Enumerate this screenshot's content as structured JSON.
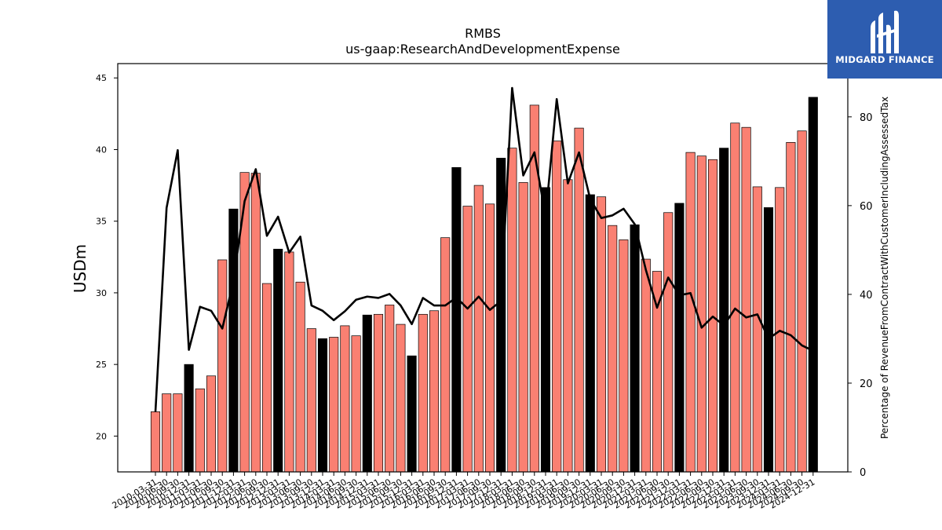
{
  "chart_data": {
    "type": "bar",
    "title": "RMBS",
    "subtitle": "us-gaap:ResearchAndDevelopmentExpense",
    "ylabel": "USDm",
    "y2label": "Percentage of RevenueFromContractWithCustomerIncludingAssessedTax",
    "ylim": [
      17.5,
      46
    ],
    "y2lim": [
      0,
      92
    ],
    "yticks": [
      20,
      25,
      30,
      35,
      40,
      45
    ],
    "y2ticks": [
      0,
      20,
      40,
      60,
      80
    ],
    "colors": {
      "bar": "#fa8072",
      "bar_q4": "#000000",
      "line": "#000000"
    },
    "categories": [
      "2010-03-31",
      "2010-06-30",
      "2010-09-30",
      "2010-12-31",
      "2011-03-31",
      "2011-06-30",
      "2011-09-30",
      "2011-12-31",
      "2012-03-31",
      "2012-06-30",
      "2012-09-30",
      "2012-12-31",
      "2013-03-31",
      "2013-06-30",
      "2013-09-30",
      "2013-12-31",
      "2014-03-31",
      "2014-06-30",
      "2014-09-30",
      "2014-12-31",
      "2015-03-31",
      "2015-06-30",
      "2015-09-30",
      "2015-12-31",
      "2016-03-31",
      "2016-06-30",
      "2016-09-30",
      "2016-12-31",
      "2017-03-31",
      "2017-06-30",
      "2017-09-30",
      "2017-12-31",
      "2018-03-31",
      "2018-06-30",
      "2018-09-30",
      "2018-12-31",
      "2019-03-31",
      "2019-06-30",
      "2019-09-30",
      "2019-12-31",
      "2020-03-31",
      "2020-06-30",
      "2020-09-30",
      "2020-12-31",
      "2021-03-31",
      "2021-06-30",
      "2021-09-30",
      "2021-12-31",
      "2022-03-31",
      "2022-06-30",
      "2022-09-30",
      "2022-12-31",
      "2023-03-31",
      "2023-06-30",
      "2023-09-30",
      "2023-12-31",
      "2024-03-31",
      "2024-06-30",
      "2024-09-30",
      "2024-12-31"
    ],
    "series": [
      {
        "type": "bar",
        "axis": "left",
        "values": [
          21.7,
          22.95,
          22.95,
          25.0,
          23.3,
          24.2,
          32.3,
          35.85,
          38.4,
          38.35,
          30.65,
          33.05,
          32.85,
          30.75,
          27.5,
          26.8,
          26.9,
          27.7,
          27.0,
          28.45,
          28.5,
          29.15,
          27.8,
          25.6,
          28.5,
          28.75,
          33.85,
          38.75,
          36.05,
          37.5,
          36.2,
          39.4,
          40.1,
          37.7,
          43.1,
          37.35,
          40.6,
          37.9,
          41.5,
          36.85,
          36.7,
          34.7,
          33.7,
          34.75,
          32.35,
          31.5,
          35.6,
          36.25,
          39.8,
          39.55,
          39.3,
          40.1,
          41.85,
          41.55,
          37.4,
          35.95,
          37.35,
          40.5,
          41.3,
          43.65
        ]
      },
      {
        "type": "line",
        "axis": "right",
        "values": [
          13.5,
          59.5,
          72.5,
          27.5,
          37.2,
          36.3,
          32.3,
          43.0,
          61.0,
          68.2,
          53.2,
          57.5,
          49.4,
          53.0,
          37.5,
          36.3,
          34.2,
          36.2,
          38.8,
          39.5,
          39.2,
          40.1,
          37.5,
          33.3,
          39.2,
          37.5,
          37.5,
          39.3,
          36.8,
          39.5,
          36.5,
          38.5,
          86.5,
          66.8,
          72.0,
          57.5,
          84.0,
          65.0,
          72.0,
          61.5,
          57.2,
          57.8,
          59.3,
          55.8,
          45.5,
          37.0,
          43.8,
          39.8,
          40.3,
          32.5,
          35.0,
          33.0,
          36.8,
          34.8,
          35.5,
          30.0,
          31.8,
          30.8,
          28.5,
          27.3
        ]
      }
    ]
  },
  "brand": {
    "name": "MIDGARD FINANCE",
    "logo_icon": "midgard-logo-icon"
  }
}
